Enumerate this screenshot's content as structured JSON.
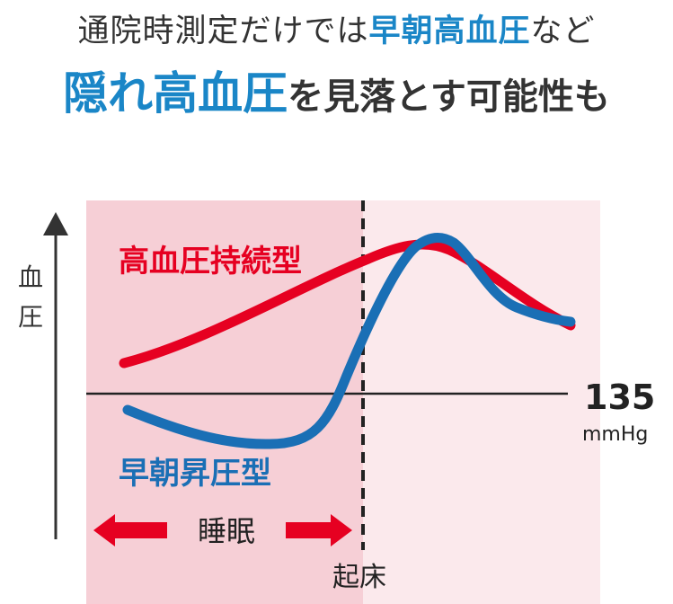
{
  "headline": {
    "line1_part1": "通院時測定だけでは",
    "line1_highlight": "早朝高血圧",
    "line1_part2": "など",
    "line2_highlight": "隠れ高血圧",
    "line2_part": "を見落とす可能性も"
  },
  "diagram": {
    "y_axis_label_1": "血",
    "y_axis_label_2": "圧",
    "threshold_value": "135",
    "threshold_unit": "mmHg",
    "series_red_label": "高血圧持続型",
    "series_blue_label": "早朝昇圧型",
    "sleep_label": "睡眠",
    "wake_label": "起床"
  },
  "colors": {
    "red": "#e60021",
    "blue": "#1a6fb5",
    "sleep_bg": "#f6cfd6",
    "day_bg": "#fbe9ec",
    "headline_blue": "#1a86c7",
    "text": "#333333"
  }
}
